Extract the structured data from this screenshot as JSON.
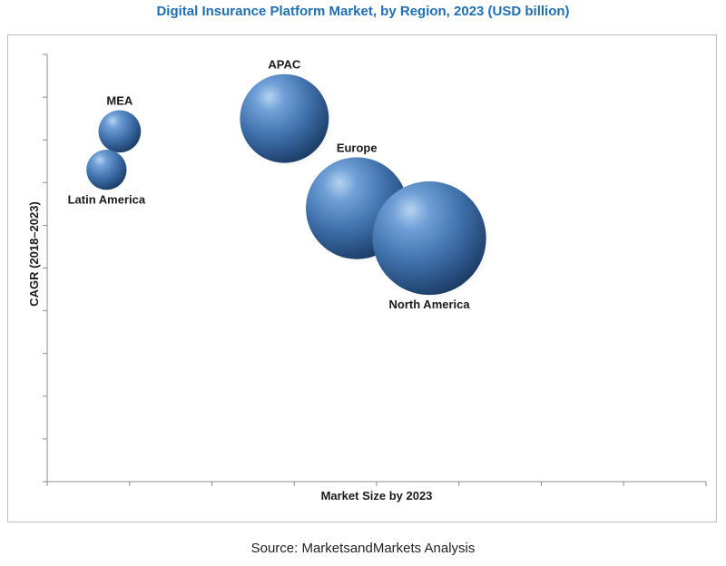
{
  "header": {
    "title": "Digital Insurance Platform Market, by Region, 2023 (USD billion)"
  },
  "footer": {
    "source": "Source: MarketsandMarkets Analysis"
  },
  "chart_data": {
    "type": "scatter",
    "title": "Digital Insurance Platform Market, by Region, 2023 (USD billion)",
    "xlabel": "Market Size by 2023",
    "ylabel": "CAGR (2018–2023)",
    "xlim": [
      0,
      10
    ],
    "ylim": [
      0,
      10
    ],
    "x_ticks_count": 8,
    "y_ticks_count": 10,
    "grid": false,
    "legend": "none",
    "bubble_color": "#4a7ebb",
    "points": [
      {
        "label": "MEA",
        "x": 1.1,
        "y": 8.2,
        "size": 0.5,
        "label_pos": "above"
      },
      {
        "label": "Latin America",
        "x": 0.9,
        "y": 7.3,
        "size": 0.45,
        "label_pos": "below"
      },
      {
        "label": "APAC",
        "x": 3.6,
        "y": 8.5,
        "size": 2.2,
        "label_pos": "above"
      },
      {
        "label": "Europe",
        "x": 4.7,
        "y": 6.4,
        "size": 2.9,
        "label_pos": "above"
      },
      {
        "label": "North America",
        "x": 5.8,
        "y": 5.7,
        "size": 3.6,
        "label_pos": "below"
      }
    ]
  }
}
